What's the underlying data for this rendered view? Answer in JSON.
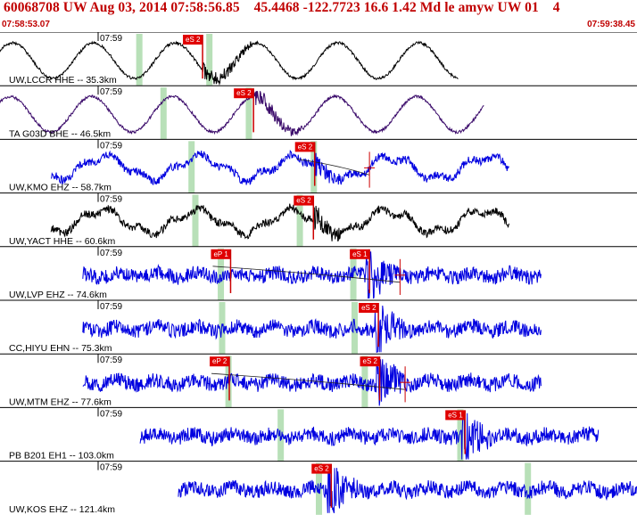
{
  "header": {
    "title": "60068708 UW Aug 03, 2014 07:58:56.85    45.4468 -122.7723 16.6 1.42 Md le amyw UW 01    4",
    "start_time": "07:58:53.07",
    "end_time": "07:59:38.45"
  },
  "colors": {
    "title": "#c00000",
    "pick_flag": "#e00000",
    "pick_line": "#cc0000",
    "window": "#b8e0b8",
    "trace_black": "#000000",
    "trace_blue": "#0000e0",
    "trace_purple": "#3a0a6a"
  },
  "panels": [
    {
      "station": "UW,LCCR HHE -- 35.3km",
      "tick": "07:59",
      "color": "trace_black",
      "pick": "eS 2",
      "waveform": "long-period",
      "pick_t": 0.318,
      "start": 0.0,
      "end": 0.72,
      "windows": [
        0.218,
        0.328
      ]
    },
    {
      "station": "TA G03D BHE -- 46.5km",
      "tick": "07:59",
      "color": "trace_purple",
      "pick": "eS 2",
      "waveform": "long-period",
      "pick_t": 0.398,
      "start": 0.0,
      "end": 0.76,
      "windows": [
        0.256,
        0.39
      ]
    },
    {
      "station": "UW,KMO EHZ -- 58.7km",
      "tick": "07:59",
      "color": "trace_blue",
      "pick": "eS 2",
      "waveform": "mixed",
      "pick_t": 0.494,
      "start": 0.08,
      "end": 0.8,
      "windows": [
        0.3,
        0.492
      ],
      "extra_pick": 0.58
    },
    {
      "station": "UW,YACT HHE -- 60.6km",
      "tick": "07:59",
      "color": "trace_black",
      "pick": "eS 2",
      "waveform": "mixed",
      "pick_t": 0.492,
      "start": 0.08,
      "end": 0.8,
      "windows": [
        0.306,
        0.47
      ]
    },
    {
      "station": "UW,LVP EHZ -- 74.6km",
      "tick": "07:59",
      "color": "trace_blue",
      "pick": "eP 1",
      "waveform": "short-period",
      "pick_t": 0.362,
      "start": 0.13,
      "end": 0.85,
      "windows": [
        0.346,
        0.554
      ],
      "second_pick": "eS 1",
      "second_t": 0.58,
      "extra_pick": 0.628
    },
    {
      "station": "CC,HIYU EHN -- 75.3km",
      "tick": "07:59",
      "color": "trace_blue",
      "pick": "eS 2",
      "waveform": "short-period",
      "pick_t": 0.594,
      "start": 0.13,
      "end": 0.85,
      "windows": [
        0.348,
        0.556
      ]
    },
    {
      "station": "UW,MTM EHZ -- 77.6km",
      "tick": "07:59",
      "color": "trace_blue",
      "pick": "eP 2",
      "waveform": "short-period",
      "pick_t": 0.36,
      "start": 0.13,
      "end": 0.85,
      "windows": [
        0.358,
        0.572
      ],
      "second_pick": "eS 2",
      "second_t": 0.596,
      "extra_pick": 0.636
    },
    {
      "station": "PB B201 EH1 -- 103.0km",
      "tick": "07:59",
      "color": "trace_blue",
      "pick": "eS 1",
      "waveform": "short-period",
      "pick_t": 0.73,
      "start": 0.22,
      "end": 0.94,
      "windows": [
        0.44,
        0.722
      ]
    },
    {
      "station": "UW,KOS EHZ -- 121.4km",
      "tick": "07:59",
      "color": "trace_blue",
      "pick": "eS 2",
      "waveform": "short-period",
      "pick_t": 0.52,
      "start": 0.28,
      "end": 1.0,
      "windows": [
        0.5,
        0.828
      ]
    }
  ]
}
